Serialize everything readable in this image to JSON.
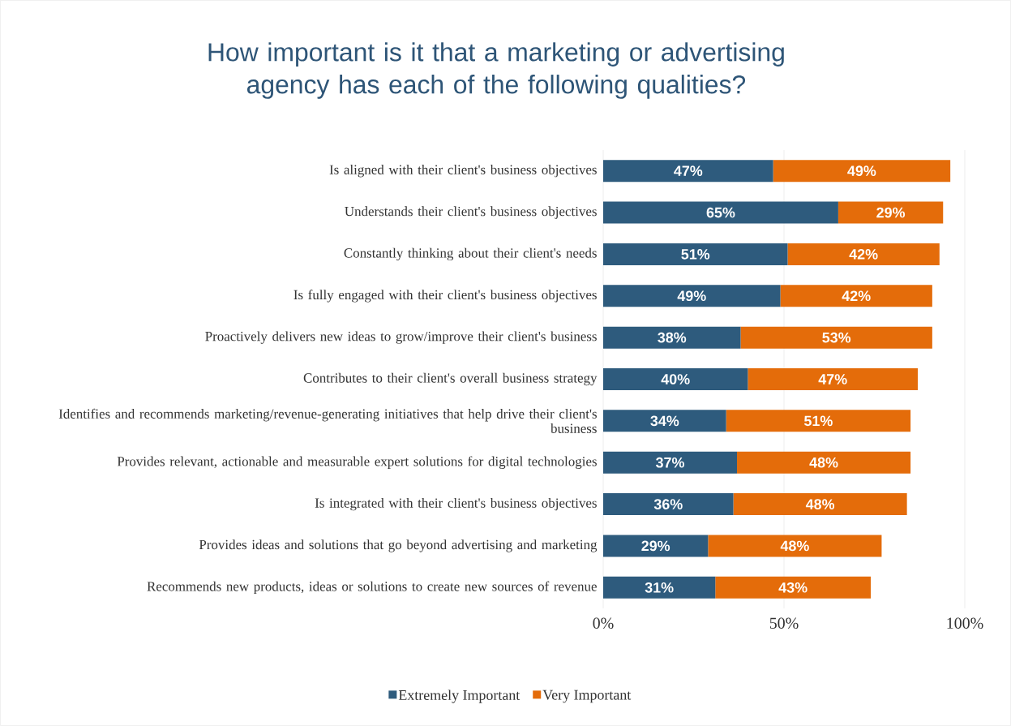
{
  "chart_data": {
    "type": "bar",
    "orientation": "horizontal",
    "stacked": true,
    "title": "How important is it that a marketing or advertising agency has each of the following qualities?",
    "categories": [
      "Is aligned with their client's business objectives",
      "Understands their client's business objectives",
      "Constantly thinking about their client's needs",
      "Is fully engaged with their client's business objectives",
      "Proactively delivers new ideas to grow/improve their client's business",
      "Contributes to their client's overall business strategy",
      "Identifies and recommends marketing/revenue-generating initiatives that help drive their client's business",
      "Provides relevant, actionable and measurable expert solutions for digital technologies",
      "Is integrated with their client's business objectives",
      "Provides ideas and solutions that go beyond advertising and marketing",
      "Recommends new products, ideas or solutions to create new sources of revenue"
    ],
    "series": [
      {
        "name": "Extremely Important",
        "color": "#2e5b7d",
        "values": [
          47,
          65,
          51,
          49,
          38,
          40,
          34,
          37,
          36,
          29,
          31
        ],
        "value_labels": [
          "47%",
          "65%",
          "51%",
          "49%",
          "38%",
          "40%",
          "34%",
          "37%",
          "36%",
          "29%",
          "31%"
        ]
      },
      {
        "name": "Very Important",
        "color": "#e46c0a",
        "values": [
          49,
          29,
          42,
          42,
          53,
          47,
          51,
          48,
          48,
          48,
          43
        ],
        "value_labels": [
          "49%",
          "29%",
          "42%",
          "42%",
          "53%",
          "47%",
          "51%",
          "48%",
          "48%",
          "48%",
          "43%"
        ]
      }
    ],
    "xlim": [
      0,
      100
    ],
    "xticks": [
      {
        "value": 0,
        "label": "0%"
      },
      {
        "value": 50,
        "label": "50%"
      },
      {
        "value": 100,
        "label": "100%"
      }
    ],
    "grid": "x",
    "legend": "bottom"
  }
}
